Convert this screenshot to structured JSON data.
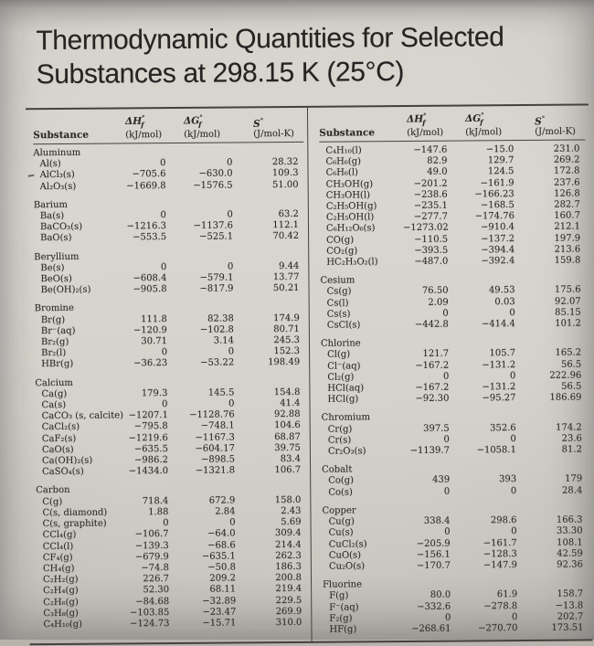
{
  "page": {
    "title_line1": "Thermodynamic Quantities for Selected",
    "title_line2": "Substances at 298.15 K (25°C)"
  },
  "table": {
    "header": {
      "substance": "Substance",
      "columns": [
        {
          "sym": "ΔH",
          "sup": "°",
          "sub": "f",
          "unit": "(kJ/mol)"
        },
        {
          "sym": "ΔG",
          "sup": "°",
          "sub": "f",
          "unit": "(kJ/mol)"
        },
        {
          "sym": "S",
          "sup": "°",
          "sub": "",
          "unit": "(J/mol-K)"
        }
      ]
    },
    "left_groups": [
      {
        "name": "Aluminum",
        "rows": [
          {
            "f": "Al(s)",
            "dH": "0",
            "dG": "0",
            "S": "28.32"
          },
          {
            "f": "AlCl₃(s)",
            "dH": "−705.6",
            "dG": "−630.0",
            "S": "109.3"
          },
          {
            "f": "Al₂O₃(s)",
            "dH": "−1669.8",
            "dG": "−1576.5",
            "S": "51.00"
          }
        ]
      },
      {
        "name": "Barium",
        "rows": [
          {
            "f": "Ba(s)",
            "dH": "0",
            "dG": "0",
            "S": "63.2"
          },
          {
            "f": "BaCO₃(s)",
            "dH": "−1216.3",
            "dG": "−1137.6",
            "S": "112.1"
          },
          {
            "f": "BaO(s)",
            "dH": "−553.5",
            "dG": "−525.1",
            "S": "70.42"
          }
        ]
      },
      {
        "name": "Beryllium",
        "rows": [
          {
            "f": "Be(s)",
            "dH": "0",
            "dG": "0",
            "S": "9.44"
          },
          {
            "f": "BeO(s)",
            "dH": "−608.4",
            "dG": "−579.1",
            "S": "13.77"
          },
          {
            "f": "Be(OH)₂(s)",
            "dH": "−905.8",
            "dG": "−817.9",
            "S": "50.21"
          }
        ]
      },
      {
        "name": "Bromine",
        "rows": [
          {
            "f": "Br(g)",
            "dH": "111.8",
            "dG": "82.38",
            "S": "174.9"
          },
          {
            "f": "Br⁻(aq)",
            "dH": "−120.9",
            "dG": "−102.8",
            "S": "80.71"
          },
          {
            "f": "Br₂(g)",
            "dH": "30.71",
            "dG": "3.14",
            "S": "245.3"
          },
          {
            "f": "Br₂(l)",
            "dH": "0",
            "dG": "0",
            "S": "152.3"
          },
          {
            "f": "HBr(g)",
            "dH": "−36.23",
            "dG": "−53.22",
            "S": "198.49"
          }
        ]
      },
      {
        "name": "Calcium",
        "rows": [
          {
            "f": "Ca(g)",
            "dH": "179.3",
            "dG": "145.5",
            "S": "154.8"
          },
          {
            "f": "Ca(s)",
            "dH": "0",
            "dG": "0",
            "S": "41.4"
          },
          {
            "f": "CaCO₃ (s, calcite)",
            "dH": "−1207.1",
            "dG": "−1128.76",
            "S": "92.88"
          },
          {
            "f": "CaCl₂(s)",
            "dH": "−795.8",
            "dG": "−748.1",
            "S": "104.6"
          },
          {
            "f": "CaF₂(s)",
            "dH": "−1219.6",
            "dG": "−1167.3",
            "S": "68.87"
          },
          {
            "f": "CaO(s)",
            "dH": "−635.5",
            "dG": "−604.17",
            "S": "39.75"
          },
          {
            "f": "Ca(OH)₂(s)",
            "dH": "−986.2",
            "dG": "−898.5",
            "S": "83.4"
          },
          {
            "f": "CaSO₄(s)",
            "dH": "−1434.0",
            "dG": "−1321.8",
            "S": "106.7"
          }
        ]
      },
      {
        "name": "Carbon",
        "rows": [
          {
            "f": "C(g)",
            "dH": "718.4",
            "dG": "672.9",
            "S": "158.0"
          },
          {
            "f": "C(s, diamond)",
            "dH": "1.88",
            "dG": "2.84",
            "S": "2.43"
          },
          {
            "f": "C(s, graphite)",
            "dH": "0",
            "dG": "0",
            "S": "5.69"
          },
          {
            "f": "CCl₄(g)",
            "dH": "−106.7",
            "dG": "−64.0",
            "S": "309.4"
          },
          {
            "f": "CCl₄(l)",
            "dH": "−139.3",
            "dG": "−68.6",
            "S": "214.4"
          },
          {
            "f": "CF₄(g)",
            "dH": "−679.9",
            "dG": "−635.1",
            "S": "262.3"
          },
          {
            "f": "CH₄(g)",
            "dH": "−74.8",
            "dG": "−50.8",
            "S": "186.3"
          },
          {
            "f": "C₂H₂(g)",
            "dH": "226.7",
            "dG": "209.2",
            "S": "200.8"
          },
          {
            "f": "C₂H₄(g)",
            "dH": "52.30",
            "dG": "68.11",
            "S": "219.4"
          },
          {
            "f": "C₂H₆(g)",
            "dH": "−84.68",
            "dG": "−32.89",
            "S": "229.5"
          },
          {
            "f": "C₃H₈(g)",
            "dH": "−103.85",
            "dG": "−23.47",
            "S": "269.9"
          },
          {
            "f": "C₄H₁₀(g)",
            "dH": "−124.73",
            "dG": "−15.71",
            "S": "310.0"
          }
        ]
      }
    ],
    "right_groups": [
      {
        "name": "",
        "rows": [
          {
            "f": "C₄H₁₀(l)",
            "dH": "−147.6",
            "dG": "−15.0",
            "S": "231.0"
          },
          {
            "f": "C₆H₆(g)",
            "dH": "82.9",
            "dG": "129.7",
            "S": "269.2"
          },
          {
            "f": "C₆H₆(l)",
            "dH": "49.0",
            "dG": "124.5",
            "S": "172.8"
          },
          {
            "f": "CH₃OH(g)",
            "dH": "−201.2",
            "dG": "−161.9",
            "S": "237.6"
          },
          {
            "f": "CH₃OH(l)",
            "dH": "−238.6",
            "dG": "−166.23",
            "S": "126.8"
          },
          {
            "f": "C₂H₅OH(g)",
            "dH": "−235.1",
            "dG": "−168.5",
            "S": "282.7"
          },
          {
            "f": "C₂H₅OH(l)",
            "dH": "−277.7",
            "dG": "−174.76",
            "S": "160.7"
          },
          {
            "f": "C₆H₁₂O₆(s)",
            "dH": "−1273.02",
            "dG": "−910.4",
            "S": "212.1"
          },
          {
            "f": "CO(g)",
            "dH": "−110.5",
            "dG": "−137.2",
            "S": "197.9"
          },
          {
            "f": "CO₂(g)",
            "dH": "−393.5",
            "dG": "−394.4",
            "S": "213.6"
          },
          {
            "f": "HC₂H₃O₂(l)",
            "dH": "−487.0",
            "dG": "−392.4",
            "S": "159.8"
          }
        ]
      },
      {
        "name": "Cesium",
        "rows": [
          {
            "f": "Cs(g)",
            "dH": "76.50",
            "dG": "49.53",
            "S": "175.6"
          },
          {
            "f": "Cs(l)",
            "dH": "2.09",
            "dG": "0.03",
            "S": "92.07"
          },
          {
            "f": "Cs(s)",
            "dH": "0",
            "dG": "0",
            "S": "85.15"
          },
          {
            "f": "CsCl(s)",
            "dH": "−442.8",
            "dG": "−414.4",
            "S": "101.2"
          }
        ]
      },
      {
        "name": "Chlorine",
        "rows": [
          {
            "f": "Cl(g)",
            "dH": "121.7",
            "dG": "105.7",
            "S": "165.2"
          },
          {
            "f": "Cl⁻(aq)",
            "dH": "−167.2",
            "dG": "−131.2",
            "S": "56.5"
          },
          {
            "f": "Cl₂(g)",
            "dH": "0",
            "dG": "0",
            "S": "222.96"
          },
          {
            "f": "HCl(aq)",
            "dH": "−167.2",
            "dG": "−131.2",
            "S": "56.5"
          },
          {
            "f": "HCl(g)",
            "dH": "−92.30",
            "dG": "−95.27",
            "S": "186.69"
          }
        ]
      },
      {
        "name": "Chromium",
        "rows": [
          {
            "f": "Cr(g)",
            "dH": "397.5",
            "dG": "352.6",
            "S": "174.2"
          },
          {
            "f": "Cr(s)",
            "dH": "0",
            "dG": "0",
            "S": "23.6"
          },
          {
            "f": "Cr₂O₃(s)",
            "dH": "−1139.7",
            "dG": "−1058.1",
            "S": "81.2"
          }
        ]
      },
      {
        "name": "Cobalt",
        "rows": [
          {
            "f": "Co(g)",
            "dH": "439",
            "dG": "393",
            "S": "179"
          },
          {
            "f": "Co(s)",
            "dH": "0",
            "dG": "0",
            "S": "28.4"
          }
        ]
      },
      {
        "name": "Copper",
        "rows": [
          {
            "f": "Cu(g)",
            "dH": "338.4",
            "dG": "298.6",
            "S": "166.3"
          },
          {
            "f": "Cu(s)",
            "dH": "0",
            "dG": "0",
            "S": "33.30"
          },
          {
            "f": "CuCl₂(s)",
            "dH": "−205.9",
            "dG": "−161.7",
            "S": "108.1"
          },
          {
            "f": "CuO(s)",
            "dH": "−156.1",
            "dG": "−128.3",
            "S": "42.59"
          },
          {
            "f": "Cu₂O(s)",
            "dH": "−170.7",
            "dG": "−147.9",
            "S": "92.36"
          }
        ]
      },
      {
        "name": "Fluorine",
        "rows": [
          {
            "f": "F(g)",
            "dH": "80.0",
            "dG": "61.9",
            "S": "158.7"
          },
          {
            "f": "F⁻(aq)",
            "dH": "−332.6",
            "dG": "−278.8",
            "S": "−13.8"
          },
          {
            "f": "F₂(g)",
            "dH": "0",
            "dG": "0",
            "S": "202.7"
          },
          {
            "f": "HF(g)",
            "dH": "−268.61",
            "dG": "−270.70",
            "S": "173.51"
          }
        ]
      }
    ]
  }
}
